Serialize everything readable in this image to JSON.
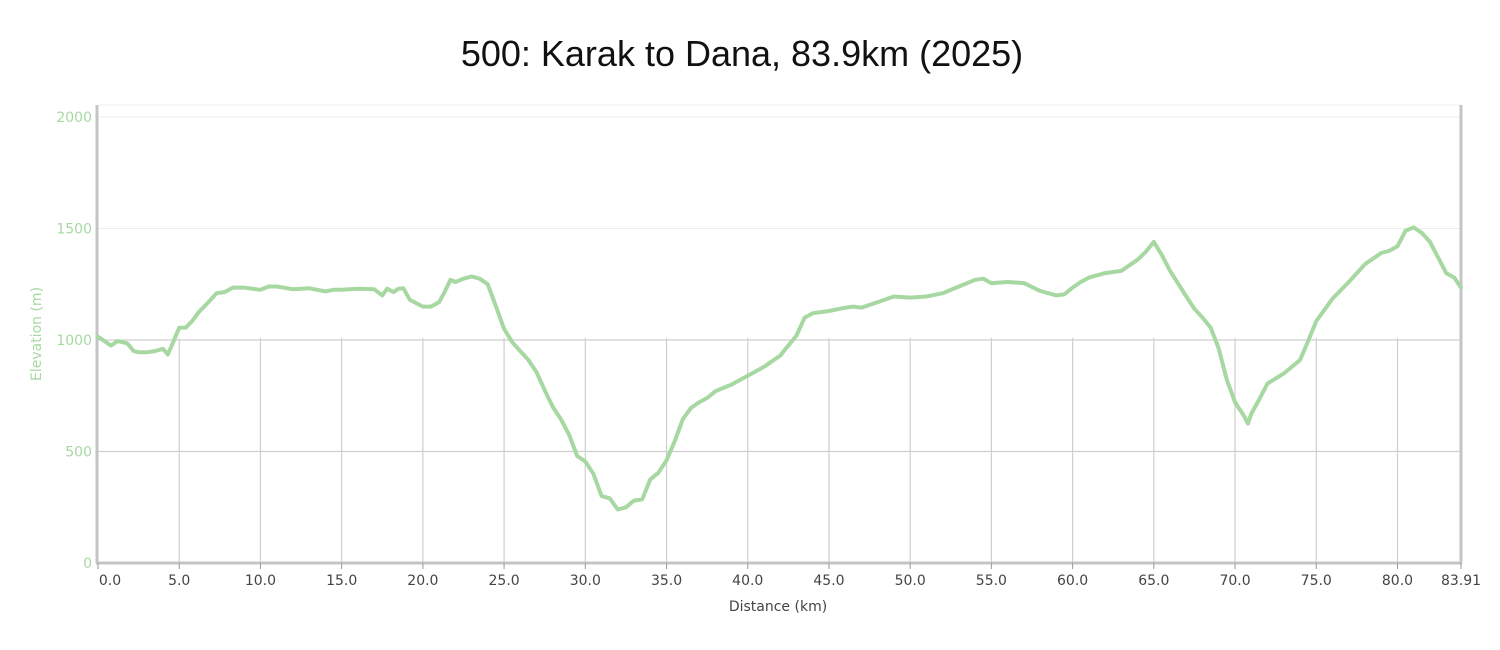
{
  "chart_data": {
    "type": "line",
    "title": "500: Karak to Dana, 83.9km (2025)",
    "xlabel": "Distance (km)",
    "ylabel": "Elevation (m)",
    "xlim": [
      0,
      83.91
    ],
    "ylim": [
      0,
      2000
    ],
    "x_ticks": [
      0,
      5,
      10,
      15,
      20,
      25,
      30,
      35,
      40,
      45,
      50,
      55,
      60,
      65,
      70,
      75,
      80,
      83.91
    ],
    "x_tick_labels": [
      "0.0",
      "5.0",
      "10.0",
      "15.0",
      "20.0",
      "25.0",
      "30.0",
      "35.0",
      "40.0",
      "45.0",
      "50.0",
      "55.0",
      "60.0",
      "65.0",
      "70.0",
      "75.0",
      "80.0",
      "83.91"
    ],
    "y_ticks": [
      0,
      500,
      1000,
      1500,
      2000
    ],
    "y_tick_labels": [
      "0",
      "500",
      "1000",
      "1500",
      "2000"
    ],
    "grid": true,
    "line_color": "#a8d8a2",
    "series": [
      {
        "x": [
          0,
          0.3,
          0.8,
          1.2,
          1.8,
          2.2,
          2.5,
          3.0,
          3.5,
          4.0,
          4.3,
          4.6,
          5.0,
          5.4,
          5.8,
          6.2,
          6.8,
          7.3,
          7.8,
          8.3,
          9.0,
          10.0,
          10.5,
          11.0,
          12.0,
          13.0,
          14.0,
          14.5,
          15.0,
          16.0,
          17.0,
          17.5,
          17.8,
          18.2,
          18.5,
          18.8,
          19.2,
          20.0,
          20.5,
          21.0,
          21.3,
          21.7,
          22.0,
          22.5,
          23.0,
          23.5,
          24.0,
          24.5,
          25.0,
          25.5,
          26.0,
          26.5,
          27.0,
          27.5,
          28.0,
          28.5,
          29.0,
          29.5,
          30.0,
          30.5,
          31.0,
          31.5,
          32.0,
          32.5,
          33.0,
          33.5,
          34.0,
          34.5,
          35.0,
          35.5,
          36.0,
          36.5,
          37.0,
          37.5,
          38.0,
          38.5,
          39.0,
          39.5,
          40.0,
          41.0,
          42.0,
          43.0,
          43.5,
          44.0,
          45.0,
          46.0,
          46.5,
          47.0,
          48.0,
          49.0,
          50.0,
          51.0,
          52.0,
          53.0,
          54.0,
          54.5,
          55.0,
          56.0,
          57.0,
          58.0,
          59.0,
          59.5,
          60.0,
          60.5,
          61.0,
          62.0,
          63.0,
          64.0,
          64.5,
          65.0,
          65.5,
          66.0,
          67.0,
          67.5,
          68.0,
          68.5,
          69.0,
          69.5,
          70.0,
          70.5,
          70.8,
          71.0,
          71.5,
          72.0,
          73.0,
          74.0,
          74.5,
          75.0,
          76.0,
          77.0,
          78.0,
          79.0,
          79.5,
          80.0,
          80.5,
          81.0,
          81.5,
          82.0,
          82.5,
          83.0,
          83.5,
          83.91
        ],
        "y": [
          1015,
          1000,
          975,
          995,
          985,
          950,
          945,
          945,
          950,
          960,
          935,
          985,
          1055,
          1055,
          1085,
          1125,
          1170,
          1210,
          1215,
          1235,
          1235,
          1225,
          1240,
          1240,
          1228,
          1232,
          1218,
          1225,
          1225,
          1230,
          1228,
          1200,
          1230,
          1215,
          1230,
          1232,
          1180,
          1150,
          1150,
          1170,
          1210,
          1270,
          1260,
          1275,
          1285,
          1275,
          1250,
          1150,
          1050,
          990,
          950,
          910,
          855,
          775,
          700,
          645,
          575,
          480,
          455,
          400,
          300,
          290,
          240,
          250,
          280,
          285,
          375,
          405,
          460,
          545,
          645,
          695,
          720,
          740,
          770,
          785,
          800,
          820,
          840,
          880,
          930,
          1020,
          1100,
          1120,
          1130,
          1145,
          1150,
          1145,
          1170,
          1195,
          1190,
          1195,
          1210,
          1240,
          1270,
          1275,
          1255,
          1260,
          1255,
          1220,
          1200,
          1205,
          1235,
          1260,
          1280,
          1300,
          1310,
          1360,
          1395,
          1440,
          1380,
          1310,
          1195,
          1140,
          1100,
          1055,
          960,
          820,
          720,
          665,
          625,
          670,
          735,
          805,
          850,
          910,
          995,
          1085,
          1185,
          1260,
          1340,
          1390,
          1400,
          1420,
          1490,
          1505,
          1480,
          1440,
          1370,
          1300,
          1280,
          1235
        ]
      }
    ]
  }
}
